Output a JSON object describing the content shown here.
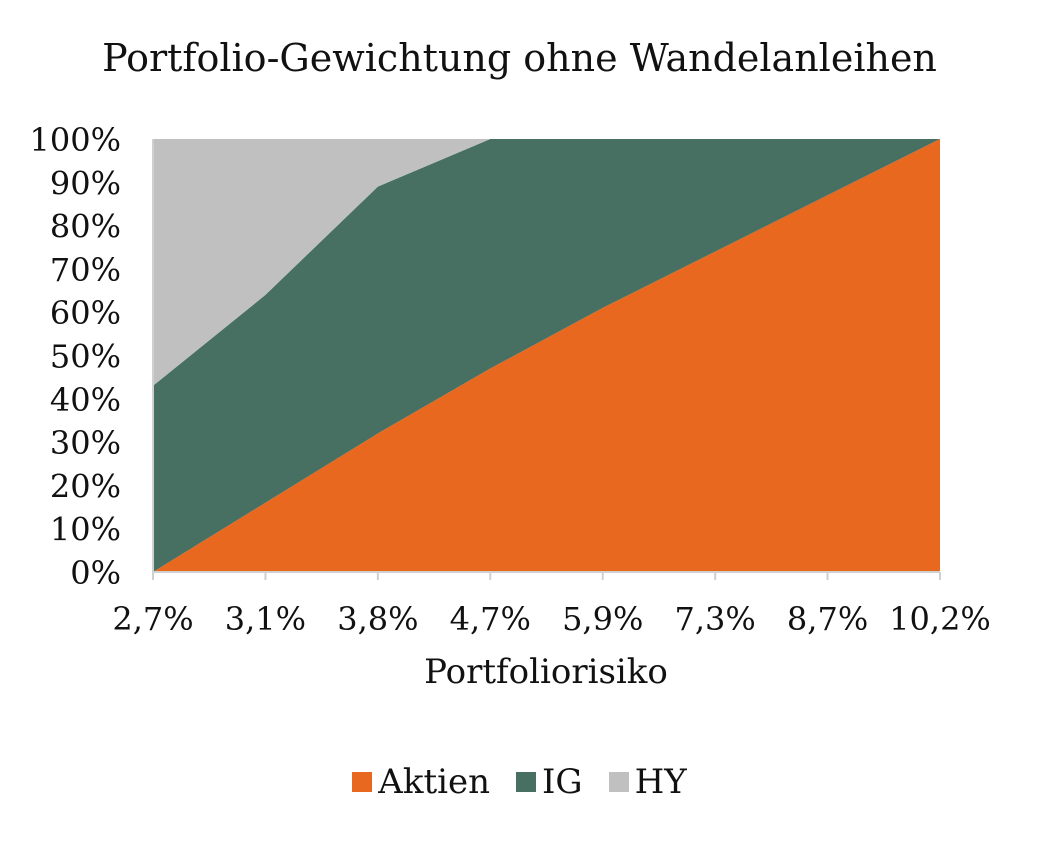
{
  "chart_data": {
    "type": "area",
    "stacked": true,
    "title": "Portfolio-Gewichtung ohne Wandelanleihen",
    "xlabel": "Portfoliorisiko",
    "ylabel": "",
    "categories": [
      "2,7%",
      "3,1%",
      "3,8%",
      "4,7%",
      "5,9%",
      "7,3%",
      "8,7%",
      "10,2%"
    ],
    "y_ticks": [
      "0%",
      "10%",
      "20%",
      "30%",
      "40%",
      "50%",
      "60%",
      "70%",
      "80%",
      "90%",
      "100%"
    ],
    "ylim": [
      0,
      100
    ],
    "grid": false,
    "legend_position": "bottom",
    "series": [
      {
        "name": "Aktien",
        "color": "#E8681F",
        "values": [
          0,
          16,
          32,
          47,
          61,
          74,
          87,
          100
        ]
      },
      {
        "name": "IG",
        "color": "#477062",
        "values": [
          43,
          48,
          57,
          53,
          39,
          26,
          13,
          0
        ]
      },
      {
        "name": "HY",
        "color": "#C0C0C0",
        "values": [
          57,
          36,
          11,
          0,
          0,
          0,
          0,
          0
        ]
      }
    ]
  }
}
